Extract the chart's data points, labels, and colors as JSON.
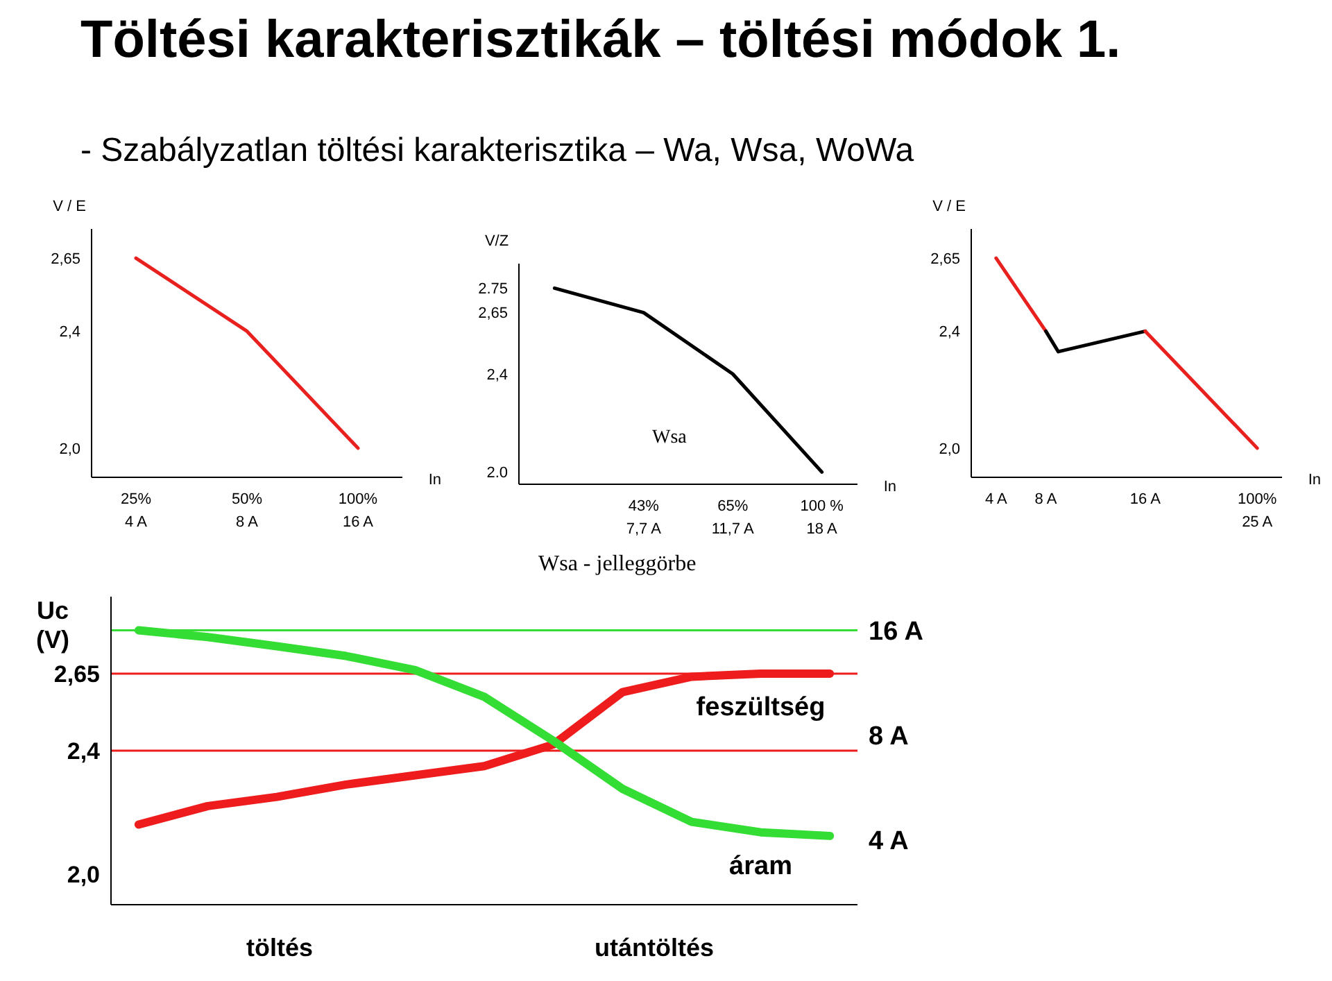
{
  "chart_data": [
    {
      "type": "line",
      "title": "Töltési karakterisztikák – töltési módok 1.",
      "subtitle": "- Szabályzatlan töltési karakterisztika – Wa, Wsa, WoWa",
      "ylabel": "V / E",
      "xlabel": "In",
      "categories": [
        "25%\n4 A",
        "50%\n8 A",
        "100%\n16 A"
      ],
      "values": [
        2.65,
        2.4,
        2.0
      ],
      "color": "#e8201e",
      "ylim": [
        1.9,
        2.75
      ],
      "yticks": [
        {
          "value": 2.0,
          "label": "2,0"
        },
        {
          "value": 2.4,
          "label": "2,4"
        },
        {
          "value": 2.65,
          "label": "2,65"
        }
      ],
      "marker": "none"
    },
    {
      "type": "line",
      "ylabel": "V/Z",
      "xlabel": "In",
      "categories": [
        null,
        "43%\n7,7 A",
        "65%\n11,7 A",
        "100 %\n18 A"
      ],
      "values": [
        2.75,
        2.65,
        2.4,
        2.0
      ],
      "color": "#000000",
      "ylim": [
        1.95,
        2.85
      ],
      "yticks": [
        {
          "value": 2.0,
          "label": "2.0"
        },
        {
          "value": 2.4,
          "label": "2,4"
        },
        {
          "value": 2.65,
          "label": "2,65"
        },
        2.75
      ],
      "annotations": [
        "Wsa"
      ],
      "marker": "none"
    },
    {
      "type": "line",
      "ylabel": "V / E",
      "xlabel": "In",
      "series": [
        {
          "color": "#e8201e",
          "x": [
            4,
            8
          ],
          "values": [
            2.65,
            2.4
          ]
        },
        {
          "color": "#000000",
          "x": [
            8,
            9,
            16
          ],
          "values": [
            2.4,
            2.33,
            2.4
          ]
        },
        {
          "color": "#e8201e",
          "x": [
            16,
            25
          ],
          "values": [
            2.4,
            2.0
          ]
        }
      ],
      "xlim": [
        2,
        27
      ],
      "xticks": [
        {
          "value": 4,
          "label": "4 A"
        },
        {
          "value": 8,
          "label": "8 A"
        },
        {
          "value": 16,
          "label": "16 A"
        },
        {
          "value": 25,
          "label": "100%\n25 A"
        }
      ],
      "ylim": [
        1.9,
        2.75
      ],
      "yticks": [
        {
          "value": 2.0,
          "label": "2,0"
        },
        {
          "value": 2.4,
          "label": "2,4"
        },
        {
          "value": 2.65,
          "label": "2,65"
        }
      ],
      "marker": "none"
    },
    {
      "type": "line",
      "title": "Wsa - jelleggörbe",
      "ylabel": "Uc (V)",
      "categories": [
        null,
        null,
        null,
        null,
        null,
        null,
        null,
        null,
        null,
        null,
        null
      ],
      "series": [
        {
          "name": "feszültség",
          "color": "#ee1c1c",
          "values": [
            2.16,
            2.22,
            2.25,
            2.29,
            2.32,
            2.35,
            2.42,
            2.59,
            2.64,
            2.65,
            2.65
          ]
        },
        {
          "name": "áram",
          "color": "#33dd33",
          "axis": "y2",
          "values": [
            16,
            15.3,
            14.4,
            13.5,
            12.3,
            10.3,
            7.7,
            5.6,
            4.5,
            4.2,
            4.1
          ]
        }
      ],
      "ylim": [
        1.9,
        2.9
      ],
      "yticks": [
        {
          "value": 2.0,
          "label": "2,0"
        },
        {
          "value": 2.4,
          "label": "2,4"
        },
        {
          "value": 2.65,
          "label": "2,65"
        }
      ],
      "y2lim": [
        2.6,
        20
      ],
      "y2ticks": [
        {
          "value": 4,
          "label": "4 A"
        },
        {
          "value": 8,
          "label": "8 A"
        },
        {
          "value": 16,
          "label": "16 A"
        }
      ],
      "log": "y2",
      "ref_lines": [
        {
          "axis": "y",
          "value": 2.65,
          "color": "#ee1c1c"
        },
        {
          "axis": "y",
          "value": 2.4,
          "color": "#ee1c1c"
        },
        {
          "axis": "y2",
          "value": 16,
          "color": "#33dd33"
        }
      ],
      "annotations": [
        "töltés",
        "utántöltés"
      ],
      "marker": "none"
    }
  ]
}
